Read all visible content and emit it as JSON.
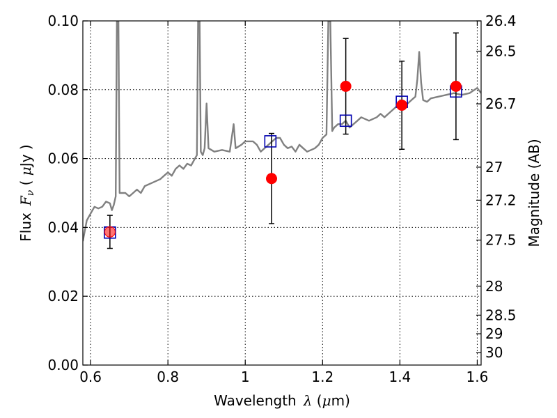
{
  "chart_data": {
    "type": "scatter",
    "title": "",
    "xlabel": {
      "pre": "Wavelength",
      "sym": "λ",
      "mid": " (",
      "unit_sym": "μ",
      "post": "m)"
    },
    "ylabel": {
      "pre": "Flux",
      "sym": "F",
      "sub": "ν",
      "mid": " ( ",
      "unit_sym": "μ",
      "post": "Jy )"
    },
    "y2label": "Magnitude (AB)",
    "xlim": [
      0.58,
      1.61
    ],
    "ylim": [
      0.0,
      0.1
    ],
    "x_ticks": [
      0.6,
      0.8,
      1.0,
      1.2,
      1.4,
      1.6
    ],
    "x_tick_labels": [
      "0.6",
      "0.8",
      "1",
      "1.2",
      "1.4",
      "1.6"
    ],
    "y_ticks": [
      0.0,
      0.02,
      0.04,
      0.06,
      0.08,
      0.1
    ],
    "y_tick_labels": [
      "0.00",
      "0.02",
      "0.04",
      "0.06",
      "0.08",
      "0.10"
    ],
    "y2_ticks": [
      {
        "label": "26.4",
        "flux": 0.1
      },
      {
        "label": "26.5",
        "flux": 0.0912
      },
      {
        "label": "26.7",
        "flux": 0.0759
      },
      {
        "label": "27",
        "flux": 0.0575
      },
      {
        "label": "27.2",
        "flux": 0.0479
      },
      {
        "label": "27.5",
        "flux": 0.0363
      },
      {
        "label": "28",
        "flux": 0.0229
      },
      {
        "label": "28.5",
        "flux": 0.0145
      },
      {
        "label": "29",
        "flux": 0.0091
      },
      {
        "label": "30",
        "flux": 0.0036
      }
    ],
    "grid": true,
    "model_spectrum": {
      "color": "#808080",
      "points": [
        [
          0.58,
          0.036
        ],
        [
          0.59,
          0.042
        ],
        [
          0.6,
          0.044
        ],
        [
          0.61,
          0.046
        ],
        [
          0.62,
          0.0455
        ],
        [
          0.63,
          0.046
        ],
        [
          0.64,
          0.0475
        ],
        [
          0.65,
          0.047
        ],
        [
          0.655,
          0.045
        ],
        [
          0.66,
          0.0465
        ],
        [
          0.665,
          0.049
        ],
        [
          0.668,
          0.1
        ],
        [
          0.672,
          0.1
        ],
        [
          0.675,
          0.05
        ],
        [
          0.69,
          0.05
        ],
        [
          0.7,
          0.049
        ],
        [
          0.71,
          0.05
        ],
        [
          0.72,
          0.051
        ],
        [
          0.73,
          0.05
        ],
        [
          0.74,
          0.052
        ],
        [
          0.76,
          0.053
        ],
        [
          0.78,
          0.054
        ],
        [
          0.79,
          0.055
        ],
        [
          0.8,
          0.056
        ],
        [
          0.81,
          0.055
        ],
        [
          0.82,
          0.057
        ],
        [
          0.83,
          0.058
        ],
        [
          0.84,
          0.057
        ],
        [
          0.85,
          0.0585
        ],
        [
          0.86,
          0.058
        ],
        [
          0.87,
          0.06
        ],
        [
          0.875,
          0.061
        ],
        [
          0.878,
          0.1
        ],
        [
          0.882,
          0.1
        ],
        [
          0.885,
          0.062
        ],
        [
          0.89,
          0.061
        ],
        [
          0.895,
          0.063
        ],
        [
          0.9,
          0.076
        ],
        [
          0.905,
          0.063
        ],
        [
          0.92,
          0.062
        ],
        [
          0.94,
          0.0625
        ],
        [
          0.96,
          0.062
        ],
        [
          0.97,
          0.07
        ],
        [
          0.975,
          0.063
        ],
        [
          0.99,
          0.064
        ],
        [
          1.0,
          0.065
        ],
        [
          1.02,
          0.065
        ],
        [
          1.03,
          0.064
        ],
        [
          1.04,
          0.062
        ],
        [
          1.05,
          0.063
        ],
        [
          1.06,
          0.064
        ],
        [
          1.07,
          0.065
        ],
        [
          1.08,
          0.066
        ],
        [
          1.09,
          0.066
        ],
        [
          1.1,
          0.064
        ],
        [
          1.11,
          0.063
        ],
        [
          1.12,
          0.0635
        ],
        [
          1.13,
          0.062
        ],
        [
          1.14,
          0.064
        ],
        [
          1.15,
          0.063
        ],
        [
          1.16,
          0.062
        ],
        [
          1.17,
          0.0625
        ],
        [
          1.18,
          0.063
        ],
        [
          1.19,
          0.064
        ],
        [
          1.2,
          0.066
        ],
        [
          1.21,
          0.067
        ],
        [
          1.215,
          0.1
        ],
        [
          1.22,
          0.1
        ],
        [
          1.225,
          0.068
        ],
        [
          1.23,
          0.069
        ],
        [
          1.24,
          0.07
        ],
        [
          1.25,
          0.07
        ],
        [
          1.26,
          0.071
        ],
        [
          1.27,
          0.069
        ],
        [
          1.28,
          0.07
        ],
        [
          1.29,
          0.071
        ],
        [
          1.3,
          0.072
        ],
        [
          1.32,
          0.071
        ],
        [
          1.34,
          0.072
        ],
        [
          1.35,
          0.073
        ],
        [
          1.36,
          0.072
        ],
        [
          1.37,
          0.073
        ],
        [
          1.38,
          0.074
        ],
        [
          1.39,
          0.075
        ],
        [
          1.4,
          0.0755
        ],
        [
          1.41,
          0.076
        ],
        [
          1.42,
          0.076
        ],
        [
          1.43,
          0.077
        ],
        [
          1.44,
          0.078
        ],
        [
          1.445,
          0.083
        ],
        [
          1.45,
          0.091
        ],
        [
          1.455,
          0.082
        ],
        [
          1.46,
          0.077
        ],
        [
          1.47,
          0.0765
        ],
        [
          1.48,
          0.0775
        ],
        [
          1.5,
          0.078
        ],
        [
          1.52,
          0.0785
        ],
        [
          1.54,
          0.079
        ],
        [
          1.56,
          0.0785
        ],
        [
          1.58,
          0.079
        ],
        [
          1.6,
          0.0805
        ],
        [
          1.61,
          0.079
        ]
      ]
    },
    "model_photometry": {
      "color": "#0000b0",
      "x": [
        0.65,
        1.065,
        1.26,
        1.405,
        1.545
      ],
      "y": [
        0.0385,
        0.065,
        0.071,
        0.0765,
        0.0795
      ]
    },
    "observed": {
      "color": "#ff0000",
      "x": [
        0.65,
        1.068,
        1.26,
        1.405,
        1.545
      ],
      "y": [
        0.0387,
        0.0542,
        0.081,
        0.0755,
        0.081
      ],
      "err": [
        0.0048,
        0.0131,
        0.0139,
        0.0128,
        0.0155
      ]
    }
  }
}
